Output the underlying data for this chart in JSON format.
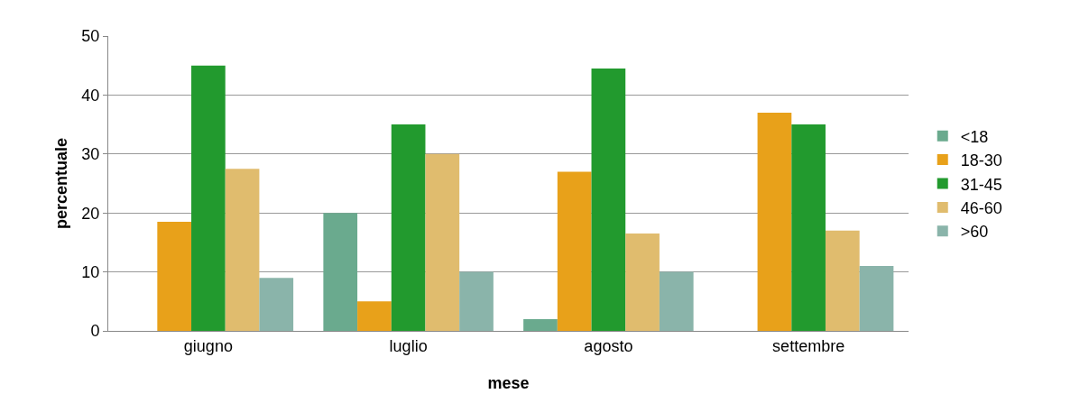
{
  "chart_data": {
    "type": "bar",
    "xlabel": "mese",
    "ylabel": "percentuale",
    "categories": [
      "giugno",
      "luglio",
      "agosto",
      "settembre"
    ],
    "series": [
      {
        "name": "<18",
        "color": "#6aaa8e",
        "values": [
          0,
          20,
          2,
          0
        ]
      },
      {
        "name": "18-30",
        "color": "#e8a11a",
        "values": [
          18.5,
          5,
          27,
          37
        ]
      },
      {
        "name": "31-45",
        "color": "#229a2e",
        "values": [
          45,
          35,
          44.5,
          35
        ]
      },
      {
        "name": "46-60",
        "color": "#e0bc6e",
        "values": [
          27.5,
          30,
          16.5,
          17
        ]
      },
      {
        "name": ">60",
        "color": "#8ab4aa",
        "values": [
          9,
          10,
          10,
          11
        ]
      }
    ],
    "ylim": [
      0,
      50
    ],
    "yticks": [
      0,
      10,
      20,
      30,
      40,
      50
    ],
    "grid": "y",
    "legend": "right"
  }
}
